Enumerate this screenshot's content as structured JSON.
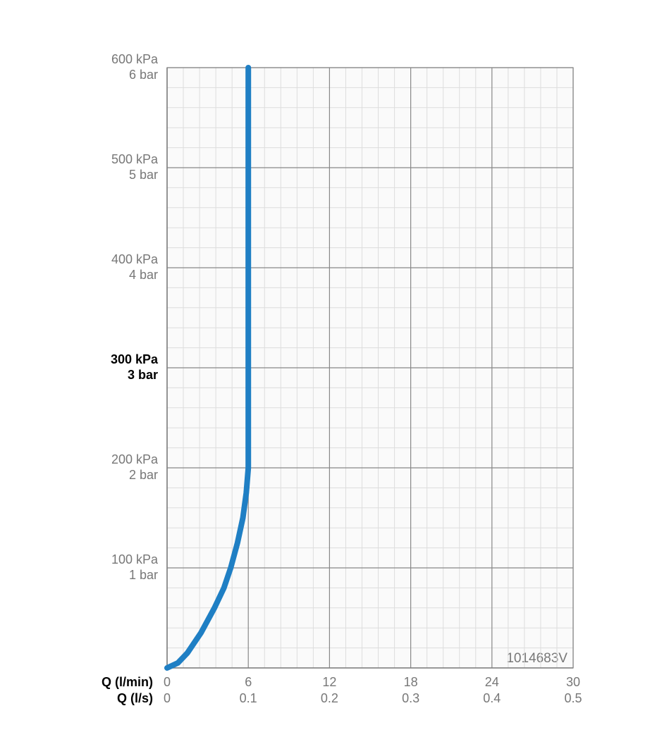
{
  "chart_data": {
    "type": "line",
    "xlabel": "Q (l/min)",
    "x2label": "Q (l/s)",
    "annotation": "1014683V",
    "x": [
      0,
      0.8,
      1.5,
      2.5,
      3.5,
      4.2,
      4.7,
      5.2,
      5.6,
      5.85,
      6,
      6
    ],
    "values": [
      0,
      5,
      15,
      35,
      60,
      80,
      100,
      125,
      150,
      175,
      200,
      600
    ],
    "color": "#1f7fc4",
    "xlim": [
      0,
      30
    ],
    "xticks": [
      0,
      6,
      12,
      18,
      24,
      30
    ],
    "x2lim": [
      0,
      0.5
    ],
    "x2ticks": [
      0,
      0.1,
      0.2,
      0.3,
      0.4,
      0.5
    ],
    "ylim": [
      0,
      600
    ],
    "yticks": [
      {
        "value": 100,
        "label": "100 kPa"
      },
      {
        "value": 200,
        "label": "200 kPa"
      },
      {
        "value": 300,
        "label": "300 kPa"
      },
      {
        "value": 400,
        "label": "400 kPa"
      },
      {
        "value": 500,
        "label": "500 kPa"
      },
      {
        "value": 600,
        "label": "600 kPa"
      }
    ],
    "y2lim": [
      0,
      6
    ],
    "y2ticks": [
      {
        "value": 1,
        "label": "1 bar"
      },
      {
        "value": 2,
        "label": "2 bar"
      },
      {
        "value": 3,
        "label": "3 bar"
      },
      {
        "value": 4,
        "label": "4 bar"
      },
      {
        "value": 5,
        "label": "5 bar"
      },
      {
        "value": 6,
        "label": "6 bar"
      }
    ],
    "highlight_y": 300,
    "grid": true,
    "minor_grid": true
  }
}
